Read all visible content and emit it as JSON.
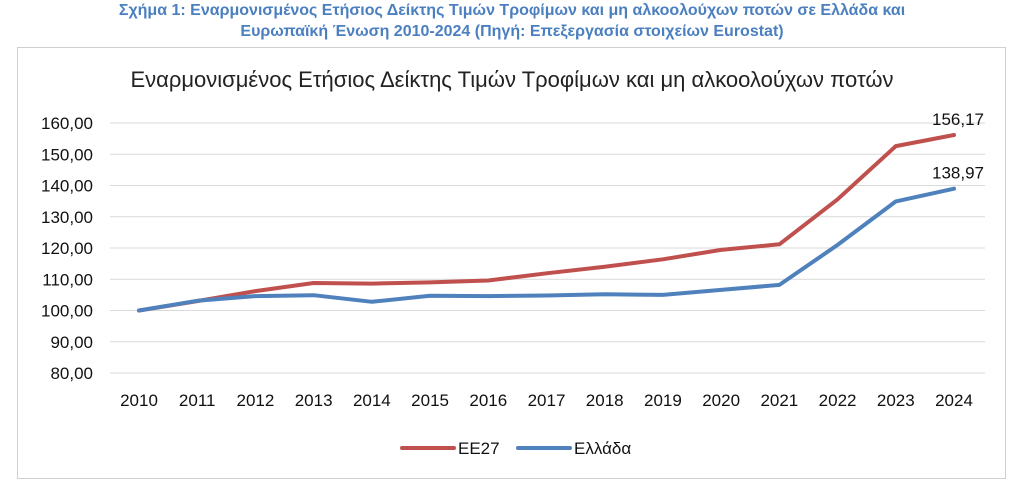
{
  "caption": {
    "line1": "Σχήμα 1: Εναρμονισμένος Ετήσιος Δείκτης Τιμών Τροφίμων και μη αλκοολούχων ποτών σε Ελλάδα και",
    "line2": "Ευρωπαϊκή Ένωση 2010-2024 (Πηγή: Επεξεργασία στοιχείων Eurostat)"
  },
  "colors": {
    "ee27": "#c0504d",
    "greece": "#4f81bd",
    "grid": "#d9d9d9"
  },
  "chart_data": {
    "type": "line",
    "title": "Εναρμονισμένος Ετήσιος Δείκτης Τιμών Τροφίμων και μη αλκοολούχων ποτών",
    "categories": [
      "2010",
      "2011",
      "2012",
      "2013",
      "2014",
      "2015",
      "2016",
      "2017",
      "2018",
      "2019",
      "2020",
      "2021",
      "2022",
      "2023",
      "2024"
    ],
    "ylim": [
      80,
      160
    ],
    "yticks": [
      "80,00",
      "90,00",
      "100,00",
      "110,00",
      "120,00",
      "130,00",
      "140,00",
      "150,00",
      "160,00"
    ],
    "grid": true,
    "legend_position": "bottom",
    "series": [
      {
        "name": "ΕΕ27",
        "color": "#c0504d",
        "values": [
          100.0,
          103.0,
          106.2,
          108.8,
          108.6,
          109.0,
          109.6,
          111.9,
          114.0,
          116.4,
          119.4,
          121.2,
          135.6,
          152.6,
          156.17
        ],
        "end_label": "156,17"
      },
      {
        "name": "Ελλάδα",
        "color": "#4f81bd",
        "values": [
          100.0,
          103.1,
          104.6,
          104.9,
          102.8,
          104.7,
          104.6,
          104.8,
          105.2,
          105.0,
          106.6,
          108.2,
          121.0,
          134.9,
          138.97
        ],
        "end_label": "138,97"
      }
    ]
  }
}
